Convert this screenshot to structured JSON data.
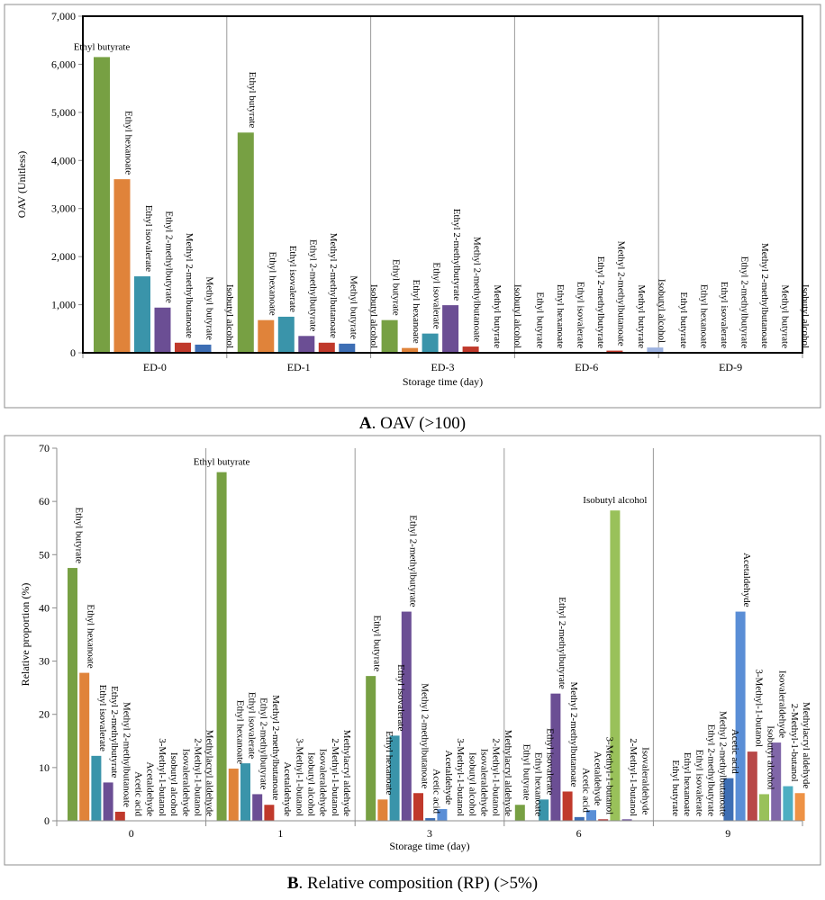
{
  "charts": [
    {
      "type": "bar",
      "panel": "A",
      "caption_letter": "A",
      "caption_text": ". OAV (>100)",
      "ylabel": "OAV (Unitless)",
      "xlabel": "Storage  time (day)",
      "ylim": [
        0,
        7000
      ],
      "yticks": [
        0,
        1000,
        2000,
        3000,
        4000,
        5000,
        6000,
        7000
      ],
      "ytick_labels": [
        "0",
        "1,000",
        "2,000",
        "3,000",
        "4,000",
        "5,000",
        "6,000",
        "7,000"
      ],
      "categories": [
        "ED-0",
        "ED-1",
        "ED-3",
        "ED-6",
        "ED-9"
      ],
      "series": [
        {
          "name": "Ethyl butyrate",
          "color": "#77a043",
          "values": [
            6150,
            4580,
            680,
            0,
            0
          ]
        },
        {
          "name": "Ethyl hexanoate",
          "color": "#e0833a",
          "values": [
            3610,
            680,
            100,
            0,
            0
          ]
        },
        {
          "name": "Ethyl isovalerate",
          "color": "#3a94aa",
          "values": [
            1590,
            750,
            400,
            0,
            0
          ]
        },
        {
          "name": "Ethyl 2-methylbutyrate",
          "color": "#6b4e94",
          "values": [
            940,
            350,
            990,
            0,
            0
          ]
        },
        {
          "name": "Methyl 2-methylbutanoate",
          "color": "#c0392b",
          "values": [
            210,
            210,
            130,
            45,
            0
          ]
        },
        {
          "name": "Methyl butyrate",
          "color": "#3d6eb4",
          "values": [
            170,
            190,
            0,
            0,
            0
          ]
        },
        {
          "name": "Isobutyl alcohol",
          "color": "#9eb3e0",
          "values": [
            0,
            0,
            0,
            110,
            0
          ]
        }
      ],
      "horizontal_labels": [
        {
          "category": "ED-0",
          "series": "Ethyl butyrate",
          "text": "Ethyl butyrate"
        }
      ]
    },
    {
      "type": "bar",
      "panel": "B",
      "caption_letter": "B",
      "caption_text": ". Relative composition (RP) (>5%)",
      "ylabel": "Relative proportion (%)",
      "xlabel": "Storage time (day)",
      "ylim": [
        0,
        70
      ],
      "yticks": [
        0,
        10,
        20,
        30,
        40,
        50,
        60,
        70
      ],
      "ytick_labels": [
        "0",
        "10",
        "20",
        "30",
        "40",
        "50",
        "60",
        "70"
      ],
      "categories": [
        "0",
        "1",
        "3",
        "6",
        "9"
      ],
      "series": [
        {
          "name": "Ethyl butyrate",
          "color": "#77a043",
          "values": [
            47.5,
            65.5,
            27.2,
            3.0,
            0
          ]
        },
        {
          "name": "Ethyl hexanoate",
          "color": "#e0833a",
          "values": [
            27.8,
            9.8,
            4.0,
            0,
            0
          ]
        },
        {
          "name": "Ethyl isovalerate",
          "color": "#3a94aa",
          "values": [
            12.2,
            10.8,
            16.0,
            4.0,
            0
          ]
        },
        {
          "name": "Ethyl 2-methylbutyrate",
          "color": "#6b4e94",
          "values": [
            7.2,
            5.0,
            39.3,
            23.9,
            0
          ]
        },
        {
          "name": "Methyl 2-methylbutanoate",
          "color": "#c0392b",
          "values": [
            1.7,
            3.0,
            5.2,
            5.5,
            0
          ]
        },
        {
          "name": "Acetic acid",
          "color": "#3d6eb4",
          "values": [
            0,
            0,
            0.5,
            0.7,
            8.0
          ]
        },
        {
          "name": "Acetaldehyde",
          "color": "#5a8ed6",
          "values": [
            0,
            0,
            2.2,
            2.0,
            39.3
          ]
        },
        {
          "name": "3-Methyl-1-butanol",
          "color": "#b84848",
          "values": [
            0,
            0,
            0,
            0.3,
            13.0
          ]
        },
        {
          "name": "Isobutyl alcohol",
          "color": "#99c15a",
          "values": [
            0,
            0,
            0,
            58.3,
            5.0
          ]
        },
        {
          "name": "Isovaleraldehyde",
          "color": "#8066a8",
          "values": [
            0,
            0,
            0,
            0.3,
            14.7
          ]
        },
        {
          "name": "2-Methyl-1-butanol",
          "color": "#4daec2",
          "values": [
            0,
            0,
            0,
            0,
            6.5
          ]
        },
        {
          "name": "Methylacryl aldehyde",
          "color": "#ee9245",
          "values": [
            0,
            0,
            0,
            0,
            5.2
          ]
        }
      ],
      "label_orders": [
        [
          "Ethyl butyrate",
          "Ethyl hexanoate",
          "Ethyl isovalerate",
          "Ethyl 2-methylbutyrate",
          "Methyl 2-methylbutanoate",
          "Acetic acid",
          "Acetaldehyde",
          "3-Methyl-1-butanol",
          "Isobutyl alcohol",
          "Isovaleraldehyde",
          "2-Methyl-1-butanol",
          "Methylacryl aldehyde"
        ],
        [
          "Ethyl butyrate",
          "Ethyl hexanoate",
          "Ethyl isovalerate",
          "Ethyl 2-methylbutyrate",
          "Methyl 2-methylbutanoate",
          "Acetaldehyde",
          "3-Methyl-1-butanol",
          "Isobutyl alcohol",
          "Isovaleraldehyde",
          "2-Methyl-1-butanol",
          "Methylacryl aldehyde"
        ],
        [
          "Ethyl butyrate",
          "Ethyl hexanoate",
          "Ethyl isovalerate",
          "Ethyl 2-methylbutyrate",
          "Methyl 2-methylbutanoate",
          "Acetic acid",
          "Acetaldehyde",
          "3-Methyl-1-butanol",
          "Isobutyl alcohol",
          "Isovaleraldehyde",
          "2-Methyl-1-butanol",
          "Methylacryl aldehyde"
        ],
        [
          "Ethyl butyrate",
          "Ethyl hexanoate",
          "Ethyl isovalerate",
          "Ethyl 2-methylbutyrate",
          "Methyl 2-methylbutanoate",
          "Acetic acid",
          "Acetaldehyde",
          "3-Methyl-1-butanol",
          "Isobutyl alcohol",
          "2-Methyl-1-butanol",
          "Isovaleraldehyde"
        ],
        [
          "Ethyl butyrate",
          "Ethyl hexanoate",
          "Ethyl isovalerate",
          "Ethyl 2-methylbutyrate",
          "Methyl 2-methylbutanoate",
          "Acetic acid",
          "Acetaldehyde",
          "3-Methyl-1-butanol",
          "Isobutyl alcohol",
          "Isovaleraldehyde",
          "2-Methyl-1-butanol",
          "Methylacryl aldehyde"
        ]
      ],
      "horizontal_labels": [
        {
          "category": "1",
          "series": "Ethyl butyrate",
          "text": "Ethyl butyrate"
        },
        {
          "category": "6",
          "series": "Isobutyl alcohol",
          "text": "Isobutyl alcohol"
        }
      ]
    }
  ]
}
